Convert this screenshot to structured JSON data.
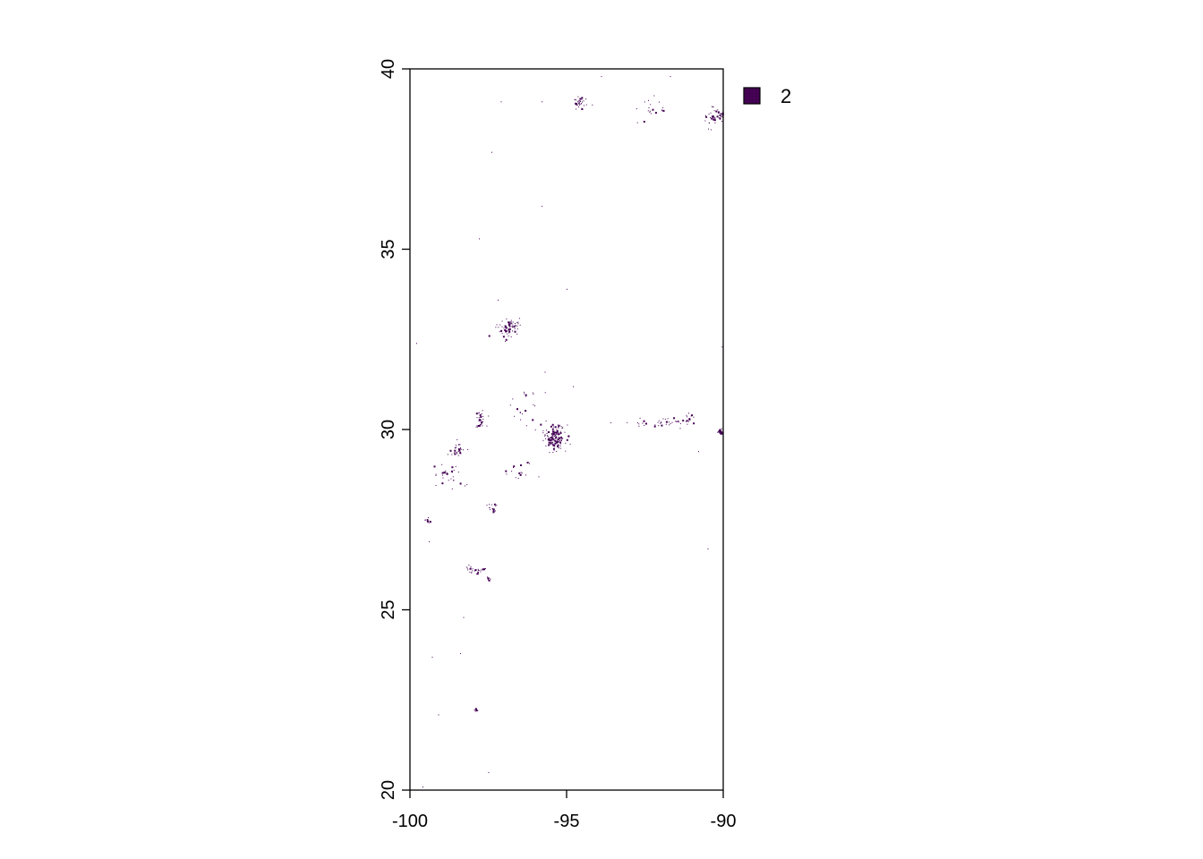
{
  "map": {
    "type": "raster",
    "x_range": [
      -100,
      -90
    ],
    "y_range": [
      20,
      40
    ],
    "x_ticks": [
      {
        "value": -100,
        "label": "-100"
      },
      {
        "value": -95,
        "label": "-95"
      },
      {
        "value": -90,
        "label": "-90"
      }
    ],
    "y_ticks": [
      {
        "value": 20,
        "label": "20"
      },
      {
        "value": 25,
        "label": "25"
      },
      {
        "value": 30,
        "label": "30"
      },
      {
        "value": 35,
        "label": "35"
      },
      {
        "value": 40,
        "label": "40"
      }
    ],
    "cell_color": "#440154",
    "legend": {
      "placement": "top-right",
      "entries": [
        {
          "label": "2",
          "color": "#440154"
        }
      ]
    },
    "clusters": [
      {
        "name": "cluster-houston",
        "lon": -95.4,
        "lat": 29.8,
        "spread_lon": 0.35,
        "spread_lat": 0.35,
        "count": 160
      },
      {
        "name": "cluster-new-orleans-edge",
        "lon": -90.1,
        "lat": 29.95,
        "spread_lon": 0.08,
        "spread_lat": 0.06,
        "count": 30
      },
      {
        "name": "cluster-dallas",
        "lon": -96.9,
        "lat": 32.85,
        "spread_lon": 0.35,
        "spread_lat": 0.3,
        "count": 70
      },
      {
        "name": "cluster-kansas-city",
        "lon": -94.6,
        "lat": 39.05,
        "spread_lon": 0.25,
        "spread_lat": 0.2,
        "count": 35
      },
      {
        "name": "cluster-st-louis",
        "lon": -90.3,
        "lat": 38.7,
        "spread_lon": 0.35,
        "spread_lat": 0.25,
        "count": 45
      },
      {
        "name": "cluster-columbia",
        "lon": -92.3,
        "lat": 38.9,
        "spread_lon": 0.5,
        "spread_lat": 0.3,
        "count": 20
      },
      {
        "name": "cluster-austin",
        "lon": -97.75,
        "lat": 30.3,
        "spread_lon": 0.2,
        "spread_lat": 0.25,
        "count": 30
      },
      {
        "name": "cluster-san-antonio",
        "lon": -98.5,
        "lat": 29.45,
        "spread_lon": 0.25,
        "spread_lat": 0.2,
        "count": 30
      },
      {
        "name": "cluster-south-texas",
        "lon": -98.8,
        "lat": 28.7,
        "spread_lon": 0.45,
        "spread_lat": 0.3,
        "count": 30
      },
      {
        "name": "cluster-corpus-christi",
        "lon": -97.4,
        "lat": 27.8,
        "spread_lon": 0.15,
        "spread_lat": 0.12,
        "count": 18
      },
      {
        "name": "cluster-laredo",
        "lon": -99.45,
        "lat": 27.5,
        "spread_lon": 0.08,
        "spread_lat": 0.08,
        "count": 12
      },
      {
        "name": "cluster-monterrey",
        "lon": -97.9,
        "lat": 26.1,
        "spread_lon": 0.35,
        "spread_lat": 0.12,
        "count": 30
      },
      {
        "name": "cluster-brownsville",
        "lon": -97.5,
        "lat": 25.88,
        "spread_lon": 0.05,
        "spread_lat": 0.05,
        "count": 12
      },
      {
        "name": "cluster-beaumont-lafayette",
        "lon": -92.0,
        "lat": 30.2,
        "spread_lon": 1.2,
        "spread_lat": 0.15,
        "count": 40
      },
      {
        "name": "cluster-baton-rouge",
        "lon": -91.1,
        "lat": 30.35,
        "spread_lon": 0.12,
        "spread_lat": 0.1,
        "count": 12
      },
      {
        "name": "cluster-waco-bryan",
        "lon": -96.4,
        "lat": 30.7,
        "spread_lon": 0.6,
        "spread_lat": 0.6,
        "count": 20
      },
      {
        "name": "cluster-tampico",
        "lon": -97.9,
        "lat": 22.25,
        "spread_lon": 0.06,
        "spread_lat": 0.08,
        "count": 10
      },
      {
        "name": "cluster-victoria",
        "lon": -96.6,
        "lat": 28.8,
        "spread_lon": 0.5,
        "spread_lat": 0.3,
        "count": 15
      }
    ],
    "isolated_cells": [
      [
        -99.8,
        32.4
      ],
      [
        -97.4,
        37.7
      ],
      [
        -95.8,
        36.2
      ],
      [
        -97.8,
        35.3
      ],
      [
        -95.0,
        33.9
      ],
      [
        -95.8,
        39.1
      ],
      [
        -97.1,
        39.1
      ],
      [
        -95.7,
        31.6
      ],
      [
        -97.2,
        33.6
      ],
      [
        -90.05,
        32.3
      ],
      [
        -99.6,
        20.1
      ],
      [
        -99.1,
        22.1
      ],
      [
        -97.5,
        20.5
      ],
      [
        -99.3,
        23.7
      ],
      [
        -98.4,
        23.8
      ],
      [
        -99.4,
        26.9
      ],
      [
        -90.5,
        26.7
      ],
      [
        -93.9,
        39.8
      ],
      [
        -91.7,
        39.8
      ],
      [
        -90.8,
        29.4
      ],
      [
        -98.3,
        24.8
      ],
      [
        -94.8,
        31.2
      ],
      [
        -93.6,
        30.2
      ],
      [
        -95.9,
        28.7
      ]
    ]
  }
}
